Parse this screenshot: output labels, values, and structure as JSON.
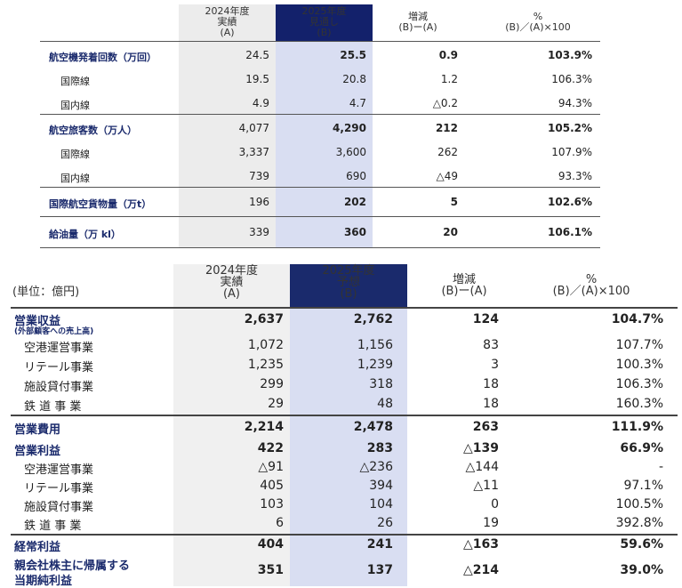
{
  "top_table": {
    "headers": {
      "a": [
        "2024年度",
        "実績",
        "(A)"
      ],
      "b": [
        "2025年度",
        "見通し",
        "(B)"
      ],
      "diff": [
        "増減",
        "(B)ー(A)"
      ],
      "pct": [
        "%",
        "(B)／(A)×100"
      ]
    },
    "rows": [
      {
        "label": "航空機発着回数（万回）",
        "a": "24.5",
        "b": "25.5",
        "diff": "0.9",
        "pct": "103.9%"
      },
      {
        "label": "国際線",
        "a": "19.5",
        "b": "20.8",
        "diff": "1.2",
        "pct": "106.3%"
      },
      {
        "label": "国内線",
        "a": "4.9",
        "b": "4.7",
        "diff": "△0.2",
        "pct": "94.3%"
      },
      {
        "label": "航空旅客数（万人）",
        "a": "4,077",
        "b": "4,290",
        "diff": "212",
        "pct": "105.2%"
      },
      {
        "label": "国際線",
        "a": "3,337",
        "b": "3,600",
        "diff": "262",
        "pct": "107.9%"
      },
      {
        "label": "国内線",
        "a": "739",
        "b": "690",
        "diff": "△49",
        "pct": "93.3%"
      },
      {
        "label": "国際航空貨物量（万t）",
        "a": "196",
        "b": "202",
        "diff": "5",
        "pct": "102.6%"
      },
      {
        "label": "給油量（万 kl）",
        "a": "339",
        "b": "360",
        "diff": "20",
        "pct": "106.1%"
      }
    ]
  },
  "bottom_table": {
    "unit": "(単位：億円)",
    "headers": {
      "a": [
        "2024年度",
        "実績",
        "(A)"
      ],
      "b": [
        "2025年度",
        "予想",
        "(B)"
      ],
      "diff": [
        "増減",
        "(B)ー(A)"
      ],
      "pct": [
        "%",
        "(B)／(A)×100"
      ]
    },
    "revenue_note": "(外部顧客への売上高)",
    "net_label_line2": "当期純利益",
    "rows": [
      {
        "label": "営業収益",
        "a": "2,637",
        "b": "2,762",
        "diff": "124",
        "pct": "104.7%"
      },
      {
        "label": "空港運営事業",
        "a": "1,072",
        "b": "1,156",
        "diff": "83",
        "pct": "107.7%"
      },
      {
        "label": "リテール事業",
        "a": "1,235",
        "b": "1,239",
        "diff": "3",
        "pct": "100.3%"
      },
      {
        "label": "施設貸付事業",
        "a": "299",
        "b": "318",
        "diff": "18",
        "pct": "106.3%"
      },
      {
        "label": "鉄 道 事 業",
        "a": "29",
        "b": "48",
        "diff": "18",
        "pct": "160.3%"
      },
      {
        "label": "営業費用",
        "a": "2,214",
        "b": "2,478",
        "diff": "263",
        "pct": "111.9%"
      },
      {
        "label": "営業利益",
        "a": "422",
        "b": "283",
        "diff": "△139",
        "pct": "66.9%"
      },
      {
        "label": "空港運営事業",
        "a": "△91",
        "b": "△236",
        "diff": "△144",
        "pct": "-"
      },
      {
        "label": "リテール事業",
        "a": "405",
        "b": "394",
        "diff": "△11",
        "pct": "97.1%"
      },
      {
        "label": "施設貸付事業",
        "a": "103",
        "b": "104",
        "diff": "0",
        "pct": "100.5%"
      },
      {
        "label": "鉄 道 事 業",
        "a": "6",
        "b": "26",
        "diff": "19",
        "pct": "392.8%"
      },
      {
        "label": "経常利益",
        "a": "404",
        "b": "241",
        "diff": "△163",
        "pct": "59.6%"
      },
      {
        "label": "親会社株主に帰属する",
        "a": "351",
        "b": "137",
        "diff": "△214",
        "pct": "39.0%"
      }
    ]
  }
}
